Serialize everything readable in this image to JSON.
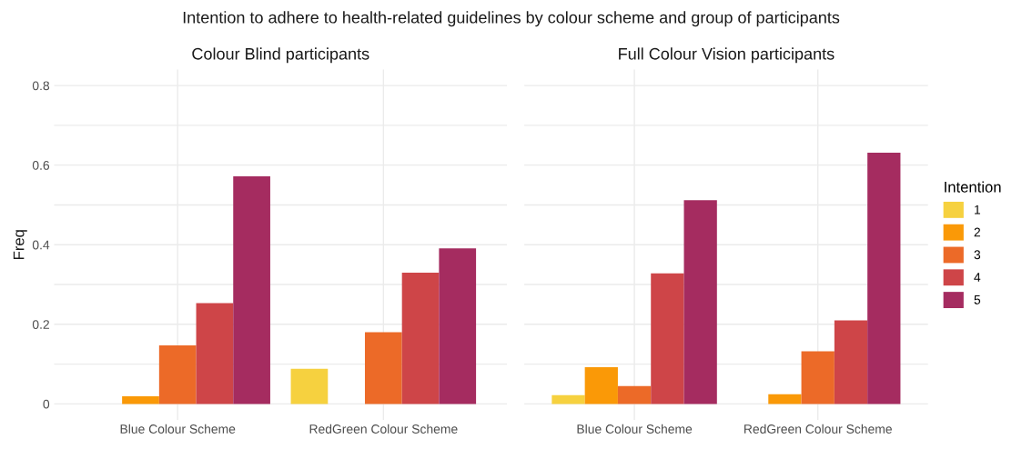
{
  "chart_data": [
    {
      "type": "bar",
      "title": "Colour Blind participants",
      "ylabel": "Freq",
      "annotations": [
        "Intention to adhere to health-related guidelines by colour scheme and group of participants"
      ],
      "categories": [
        "Blue Colour Scheme",
        "RedGreen Colour Scheme"
      ],
      "series": [
        {
          "color": "#f6d13f",
          "values": [
            null,
            0.088
          ]
        },
        {
          "color": "#fa9907",
          "values": [
            0.019,
            null
          ]
        },
        {
          "color": "#ec6a28",
          "values": [
            0.147,
            0.18
          ]
        },
        {
          "color": "#ce4548",
          "values": [
            0.253,
            0.33
          ]
        },
        {
          "color": "#a52c60",
          "values": [
            0.572,
            0.391
          ]
        }
      ],
      "ylim": [
        -0.04,
        0.84
      ],
      "yticks": [
        0,
        {
          "value": 0.1,
          "label": null
        },
        0.2,
        {
          "value": 0.3,
          "label": null
        },
        0.4,
        {
          "value": 0.5,
          "label": null
        },
        0.6,
        {
          "value": 0.7,
          "label": null
        },
        0.8
      ],
      "grid": true
    },
    {
      "type": "bar",
      "title": "Full Colour Vision participants",
      "legend_title": "Intention",
      "categories": [
        "Blue Colour Scheme",
        "RedGreen Colour Scheme"
      ],
      "series": [
        {
          "name": "1",
          "color": "#f6d13f",
          "values": [
            0.022,
            null
          ]
        },
        {
          "name": "2",
          "color": "#fa9907",
          "values": [
            0.092,
            0.024
          ]
        },
        {
          "name": "3",
          "color": "#ec6a28",
          "values": [
            0.045,
            0.132
          ]
        },
        {
          "name": "4",
          "color": "#ce4548",
          "values": [
            0.328,
            0.21
          ]
        },
        {
          "name": "5",
          "color": "#a52c60",
          "values": [
            0.512,
            0.631
          ]
        }
      ],
      "ylim": [
        -0.04,
        0.84
      ],
      "yticks": [
        0,
        {
          "value": 0.1,
          "label": null
        },
        0.2,
        {
          "value": 0.3,
          "label": null
        },
        0.4,
        {
          "value": 0.5,
          "label": null
        },
        0.6,
        {
          "value": 0.7,
          "label": null
        },
        0.8
      ],
      "grid": true,
      "legend": "right",
      "tick_labels": "x"
    }
  ]
}
